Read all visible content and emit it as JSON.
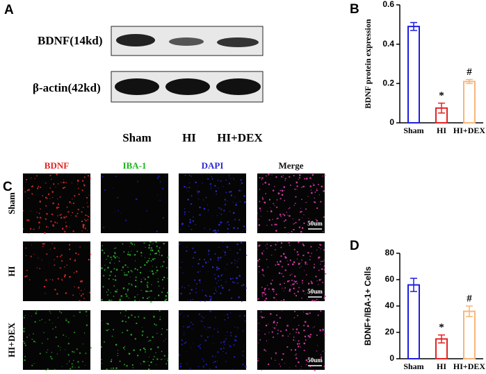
{
  "panels": {
    "a": "A",
    "b": "B",
    "c": "C",
    "d": "D"
  },
  "blot": {
    "bands": [
      "BDNF(14kd)",
      "β-actin(42kd)"
    ],
    "lanes": [
      "Sham",
      "HI",
      "HI+DEX"
    ]
  },
  "micrographs": {
    "columns": [
      "BDNF",
      "IBA-1",
      "DAPI",
      "Merge"
    ],
    "rows": [
      "Sham",
      "HI",
      "HI+DEX"
    ],
    "scale_bar": "50um"
  },
  "chart_data": [
    {
      "type": "bar",
      "y_label": "BDNF protein expression",
      "categories": [
        "Sham",
        "HI",
        "HI+DEX"
      ],
      "values": [
        0.49,
        0.075,
        0.21
      ],
      "errors": [
        0.02,
        0.025,
        0.01
      ],
      "colors": [
        "#1d1de0",
        "#e32222",
        "#f7b67a"
      ],
      "ylim": [
        0,
        0.6
      ],
      "yticks": [
        0,
        0.2,
        0.4,
        0.6
      ],
      "annotations": {
        "HI": "*",
        "HI+DEX": "#"
      }
    },
    {
      "type": "bar",
      "y_label": "BDNF+/IBA-1+ Cells",
      "categories": [
        "Sham",
        "HI",
        "HI+DEX"
      ],
      "values": [
        56,
        15,
        36
      ],
      "errors": [
        5,
        3,
        4
      ],
      "colors": [
        "#1d1de0",
        "#e32222",
        "#f7b67a"
      ],
      "ylim": [
        0,
        80
      ],
      "yticks": [
        0,
        20,
        40,
        60,
        80
      ],
      "annotations": {
        "HI": "*",
        "HI+DEX": "#"
      }
    }
  ]
}
